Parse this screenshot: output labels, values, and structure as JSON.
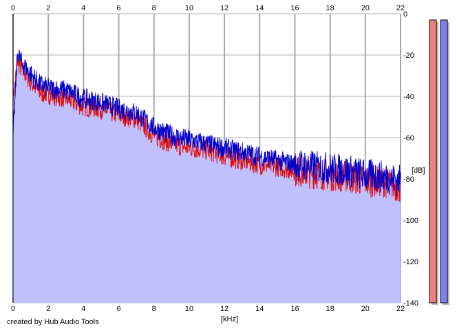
{
  "footer": {
    "credit": "created by Hub Audio Tools"
  },
  "chart_data": {
    "type": "area",
    "title": "",
    "xlabel": "[kHz]",
    "ylabel": "[dB]",
    "xlim": [
      0,
      22
    ],
    "ylim": [
      -140,
      0
    ],
    "x_ticks": [
      0,
      2,
      4,
      6,
      8,
      10,
      12,
      14,
      16,
      18,
      20,
      22
    ],
    "x_tick_labels": [
      "0",
      "2",
      "4",
      "6",
      "8",
      "10",
      "12",
      "14",
      "16",
      "18",
      "20",
      "22"
    ],
    "y_ticks": [
      0,
      -20,
      -40,
      -60,
      -80,
      -100,
      -120,
      -140
    ],
    "y_tick_labels": [
      "0",
      "-20",
      "-40",
      "-60",
      "-80",
      "-100",
      "-120",
      "-140"
    ],
    "grid": true,
    "x": [
      0,
      0.25,
      0.5,
      1,
      1.5,
      2,
      3,
      4,
      5,
      6,
      7,
      8,
      9,
      10,
      11,
      12,
      13,
      14,
      15,
      16,
      17,
      18,
      19,
      20,
      21,
      22
    ],
    "series": [
      {
        "name": "",
        "color": "#e01010",
        "values": [
          -40,
          -22,
          -26,
          -32,
          -37,
          -38,
          -40,
          -44,
          -45,
          -48,
          -50,
          -58,
          -62,
          -64,
          -65,
          -68,
          -70,
          -72,
          -73,
          -75,
          -76,
          -77,
          -78,
          -80,
          -80,
          -83
        ]
      },
      {
        "name": "",
        "color": "#0000cc",
        "values": [
          -60,
          -20,
          -25,
          -30,
          -35,
          -37,
          -38,
          -42,
          -44,
          -47,
          -49,
          -56,
          -60,
          -62,
          -64,
          -66,
          -68,
          -70,
          -72,
          -74,
          -75,
          -76,
          -77,
          -79,
          -80,
          -82
        ]
      }
    ],
    "fill_color": "#c0c0ff",
    "meters": [
      {
        "channel": "left",
        "color": "#f08080",
        "level_db": -3
      },
      {
        "channel": "right",
        "color": "#8080f0",
        "level_db": -3
      }
    ]
  }
}
